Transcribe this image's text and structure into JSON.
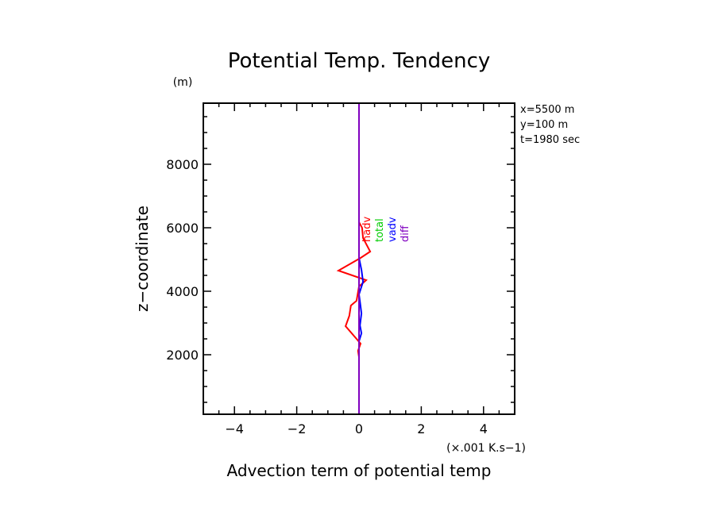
{
  "chart_data": {
    "type": "line",
    "title": "Potential Temp. Tendency",
    "xlabel": "Advection term of potential temp",
    "xunit": "(×.001 K.s−1)",
    "ylabel": "z−coordinate",
    "yunit": "(m)",
    "xlim": [
      -5,
      5
    ],
    "ylim": [
      125,
      9925
    ],
    "xticks": [
      -4,
      -2,
      0,
      2,
      4
    ],
    "xtick_labels": [
      "−4",
      "−2",
      "0",
      "2",
      "4"
    ],
    "yticks": [
      2000,
      4000,
      6000,
      8000
    ],
    "ytick_labels": [
      "2000",
      "4000",
      "6000",
      "8000"
    ],
    "x_minor_step": 0.5,
    "y_minor_step": 500,
    "grid": false,
    "info": [
      "x=5500 m",
      "y=100 m",
      "t=1980 sec"
    ],
    "series": [
      {
        "name": "red",
        "color": "#ff0000",
        "points": [
          [
            0,
            1925
          ],
          [
            -0.03,
            2125
          ],
          [
            0.05,
            2350
          ],
          [
            -0.08,
            2500
          ],
          [
            -0.43,
            2900
          ],
          [
            -0.31,
            3225
          ],
          [
            -0.26,
            3550
          ],
          [
            -0.08,
            3700
          ],
          [
            0,
            4150
          ],
          [
            0.23,
            4350
          ],
          [
            -0.66,
            4650
          ],
          [
            0.05,
            5050
          ],
          [
            0.36,
            5250
          ],
          [
            0.13,
            5675
          ],
          [
            0.1,
            6000
          ],
          [
            0,
            6175
          ]
        ]
      },
      {
        "name": "blue",
        "color": "#0000ff",
        "points": [
          [
            0,
            2200
          ],
          [
            0,
            2425
          ],
          [
            0.08,
            2675
          ],
          [
            0.03,
            2925
          ],
          [
            0.08,
            3300
          ],
          [
            0.03,
            3675
          ],
          [
            0,
            3900
          ],
          [
            0.13,
            4300
          ],
          [
            0.08,
            4675
          ],
          [
            0,
            5050
          ],
          [
            0,
            5400
          ]
        ]
      },
      {
        "name": "purple",
        "color": "#8000c0",
        "points": [
          [
            0,
            125
          ],
          [
            0,
            9925
          ]
        ]
      }
    ],
    "curve_labels": [
      {
        "text": "hadv",
        "color": "#ff0000"
      },
      {
        "text": "total",
        "color": "#00cc00"
      },
      {
        "text": "vadv",
        "color": "#0000ff"
      },
      {
        "text": "diff",
        "color": "#8000c0"
      }
    ]
  }
}
